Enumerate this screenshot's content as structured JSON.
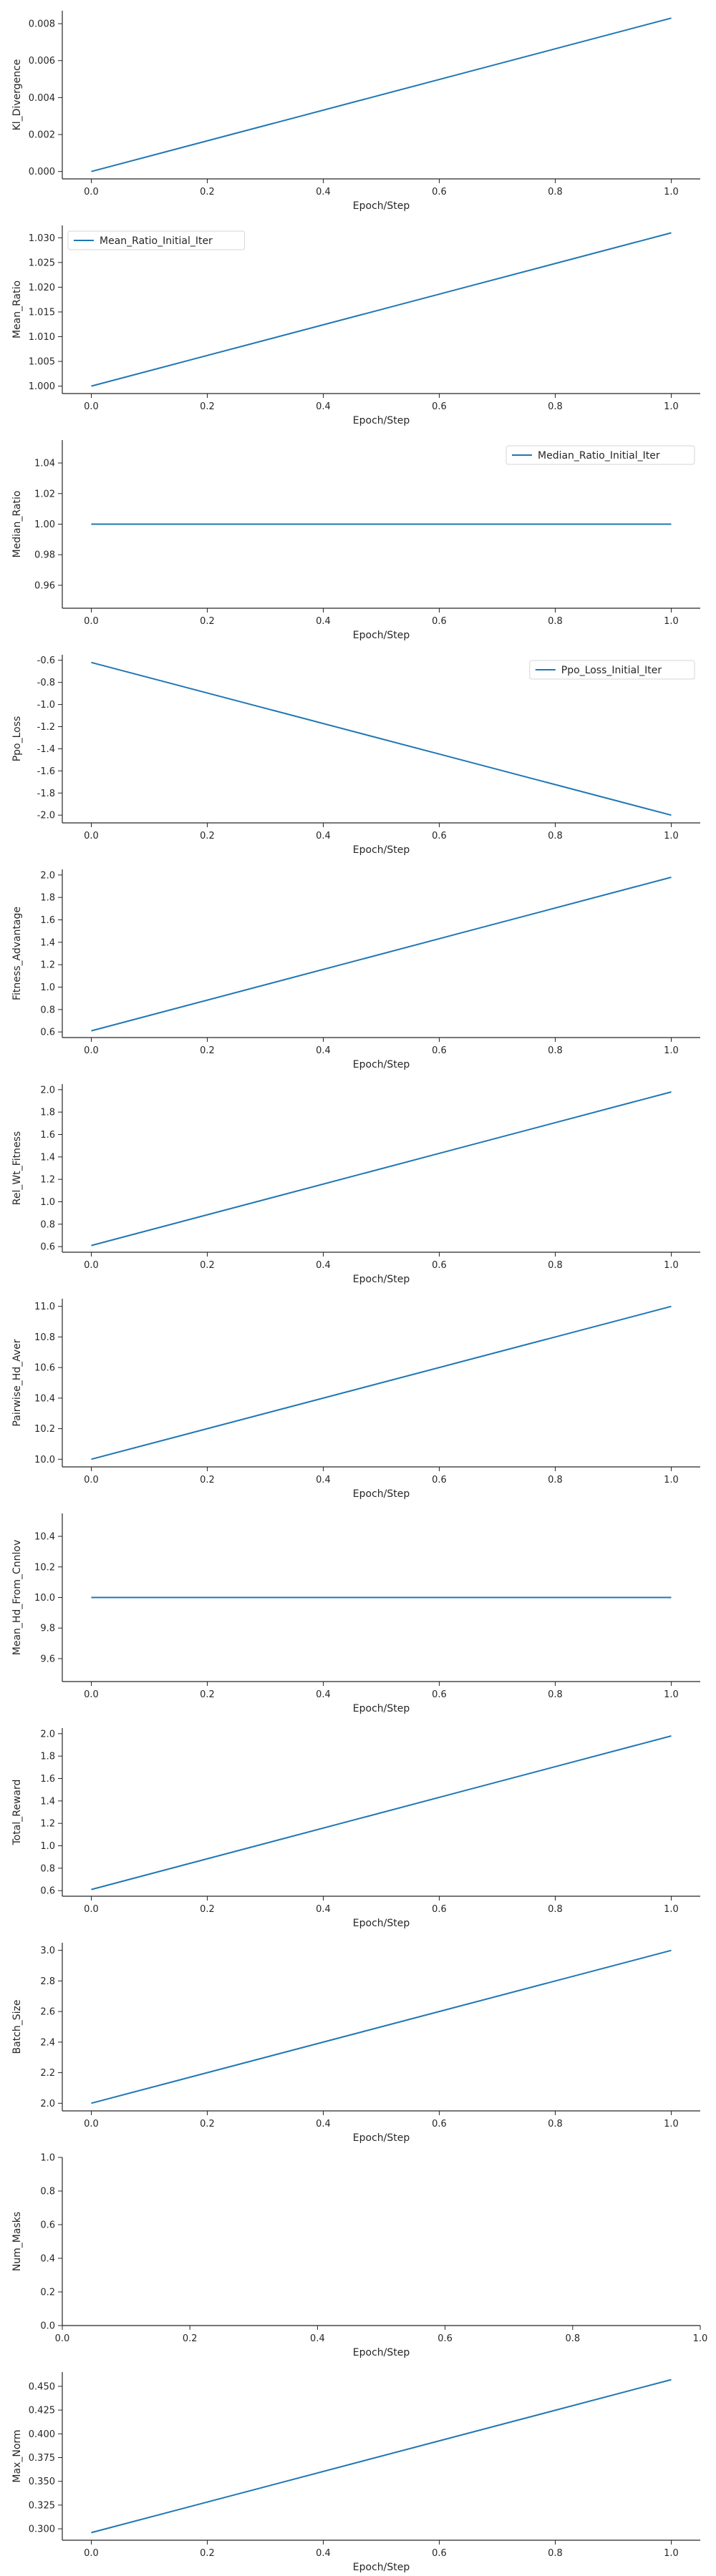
{
  "chart_data": [
    {
      "type": "line",
      "xlabel": "Epoch/Step",
      "ylabel": "Kl_Divergence",
      "xlim": [
        -0.05,
        1.05
      ],
      "ylim": [
        -0.0004,
        0.0087
      ],
      "xticks": [
        "0.0",
        "0.2",
        "0.4",
        "0.6",
        "0.8",
        "1.0"
      ],
      "yticks": [
        "0.000",
        "0.002",
        "0.004",
        "0.006",
        "0.008"
      ],
      "series": [
        {
          "x": [
            0.0,
            1.0
          ],
          "y": [
            0.0,
            0.0083
          ]
        }
      ],
      "color": "#1f77b4",
      "legend": null
    },
    {
      "type": "line",
      "xlabel": "Epoch/Step",
      "ylabel": "Mean_Ratio",
      "xlim": [
        -0.05,
        1.05
      ],
      "ylim": [
        0.9985,
        1.0325
      ],
      "xticks": [
        "0.0",
        "0.2",
        "0.4",
        "0.6",
        "0.8",
        "1.0"
      ],
      "yticks": [
        "1.000",
        "1.005",
        "1.010",
        "1.015",
        "1.020",
        "1.025",
        "1.030"
      ],
      "series": [
        {
          "name": "Mean_Ratio_Initial_Iter",
          "x": [
            0.0,
            1.0
          ],
          "y": [
            1.0,
            1.031
          ]
        }
      ],
      "color": "#1f77b4",
      "legend": "top-left"
    },
    {
      "type": "line",
      "xlabel": "Epoch/Step",
      "ylabel": "Median_Ratio",
      "xlim": [
        -0.05,
        1.05
      ],
      "ylim": [
        0.945,
        1.055
      ],
      "xticks": [
        "0.0",
        "0.2",
        "0.4",
        "0.6",
        "0.8",
        "1.0"
      ],
      "yticks": [
        "0.96",
        "0.98",
        "1.00",
        "1.02",
        "1.04"
      ],
      "series": [
        {
          "name": "Median_Ratio_Initial_Iter",
          "x": [
            0.0,
            1.0
          ],
          "y": [
            1.0,
            1.0
          ]
        }
      ],
      "color": "#1f77b4",
      "legend": "top-right"
    },
    {
      "type": "line",
      "xlabel": "Epoch/Step",
      "ylabel": "Ppo_Loss",
      "xlim": [
        -0.05,
        1.05
      ],
      "ylim": [
        -2.07,
        -0.55
      ],
      "xticks": [
        "0.0",
        "0.2",
        "0.4",
        "0.6",
        "0.8",
        "1.0"
      ],
      "yticks": [
        "-0.6",
        "-0.8",
        "-1.0",
        "-1.2",
        "-1.4",
        "-1.6",
        "-1.8",
        "-2.0"
      ],
      "series": [
        {
          "name": "Ppo_Loss_Initial_Iter",
          "x": [
            0.0,
            1.0
          ],
          "y": [
            -0.62,
            -2.0
          ]
        }
      ],
      "color": "#1f77b4",
      "legend": "top-right"
    },
    {
      "type": "line",
      "xlabel": "Epoch/Step",
      "ylabel": "Fitness_Advantage",
      "xlim": [
        -0.05,
        1.05
      ],
      "ylim": [
        0.55,
        2.05
      ],
      "xticks": [
        "0.0",
        "0.2",
        "0.4",
        "0.6",
        "0.8",
        "1.0"
      ],
      "yticks": [
        "0.6",
        "0.8",
        "1.0",
        "1.2",
        "1.4",
        "1.6",
        "1.8",
        "2.0"
      ],
      "series": [
        {
          "x": [
            0.0,
            1.0
          ],
          "y": [
            0.61,
            1.98
          ]
        }
      ],
      "color": "#1f77b4",
      "legend": null
    },
    {
      "type": "line",
      "xlabel": "Epoch/Step",
      "ylabel": "Rel_Wt_Fitness",
      "xlim": [
        -0.05,
        1.05
      ],
      "ylim": [
        0.55,
        2.05
      ],
      "xticks": [
        "0.0",
        "0.2",
        "0.4",
        "0.6",
        "0.8",
        "1.0"
      ],
      "yticks": [
        "0.6",
        "0.8",
        "1.0",
        "1.2",
        "1.4",
        "1.6",
        "1.8",
        "2.0"
      ],
      "series": [
        {
          "x": [
            0.0,
            1.0
          ],
          "y": [
            0.61,
            1.98
          ]
        }
      ],
      "color": "#1f77b4",
      "legend": null
    },
    {
      "type": "line",
      "xlabel": "Epoch/Step",
      "ylabel": "Pairwise_Hd_Aver",
      "xlim": [
        -0.05,
        1.05
      ],
      "ylim": [
        9.95,
        11.05
      ],
      "xticks": [
        "0.0",
        "0.2",
        "0.4",
        "0.6",
        "0.8",
        "1.0"
      ],
      "yticks": [
        "10.0",
        "10.2",
        "10.4",
        "10.6",
        "10.8",
        "11.0"
      ],
      "series": [
        {
          "x": [
            0.0,
            1.0
          ],
          "y": [
            10.0,
            11.0
          ]
        }
      ],
      "color": "#1f77b4",
      "legend": null
    },
    {
      "type": "line",
      "xlabel": "Epoch/Step",
      "ylabel": "Mean_Hd_From_Cnnlov",
      "xlim": [
        -0.05,
        1.05
      ],
      "ylim": [
        9.45,
        10.55
      ],
      "xticks": [
        "0.0",
        "0.2",
        "0.4",
        "0.6",
        "0.8",
        "1.0"
      ],
      "yticks": [
        "9.6",
        "9.8",
        "10.0",
        "10.2",
        "10.4"
      ],
      "series": [
        {
          "x": [
            0.0,
            1.0
          ],
          "y": [
            10.0,
            10.0
          ]
        }
      ],
      "color": "#1f77b4",
      "legend": null
    },
    {
      "type": "line",
      "xlabel": "Epoch/Step",
      "ylabel": "Total_Reward",
      "xlim": [
        -0.05,
        1.05
      ],
      "ylim": [
        0.55,
        2.05
      ],
      "xticks": [
        "0.0",
        "0.2",
        "0.4",
        "0.6",
        "0.8",
        "1.0"
      ],
      "yticks": [
        "0.6",
        "0.8",
        "1.0",
        "1.2",
        "1.4",
        "1.6",
        "1.8",
        "2.0"
      ],
      "series": [
        {
          "x": [
            0.0,
            1.0
          ],
          "y": [
            0.61,
            1.98
          ]
        }
      ],
      "color": "#1f77b4",
      "legend": null
    },
    {
      "type": "line",
      "xlabel": "Epoch/Step",
      "ylabel": "Batch_Size",
      "xlim": [
        -0.05,
        1.05
      ],
      "ylim": [
        1.95,
        3.05
      ],
      "xticks": [
        "0.0",
        "0.2",
        "0.4",
        "0.6",
        "0.8",
        "1.0"
      ],
      "yticks": [
        "2.0",
        "2.2",
        "2.4",
        "2.6",
        "2.8",
        "3.0"
      ],
      "series": [
        {
          "x": [
            0.0,
            1.0
          ],
          "y": [
            2.0,
            3.0
          ]
        }
      ],
      "color": "#1f77b4",
      "legend": null
    },
    {
      "type": "line",
      "xlabel": "Epoch/Step",
      "ylabel": "Num_Masks",
      "xlim": [
        0.0,
        1.0
      ],
      "ylim": [
        0.0,
        1.0
      ],
      "xticks": [
        "0.0",
        "0.2",
        "0.4",
        "0.6",
        "0.8",
        "1.0"
      ],
      "yticks": [
        "0.0",
        "0.2",
        "0.4",
        "0.6",
        "0.8",
        "1.0"
      ],
      "series": [],
      "color": "#1f77b4",
      "legend": null
    },
    {
      "type": "line",
      "xlabel": "Epoch/Step",
      "ylabel": "Max_Norm",
      "xlim": [
        -0.05,
        1.05
      ],
      "ylim": [
        0.288,
        0.465
      ],
      "xticks": [
        "0.0",
        "0.2",
        "0.4",
        "0.6",
        "0.8",
        "1.0"
      ],
      "yticks": [
        "0.300",
        "0.325",
        "0.350",
        "0.375",
        "0.400",
        "0.425",
        "0.450"
      ],
      "series": [
        {
          "x": [
            0.0,
            1.0
          ],
          "y": [
            0.296,
            0.457
          ]
        }
      ],
      "color": "#1f77b4",
      "legend": null
    }
  ]
}
